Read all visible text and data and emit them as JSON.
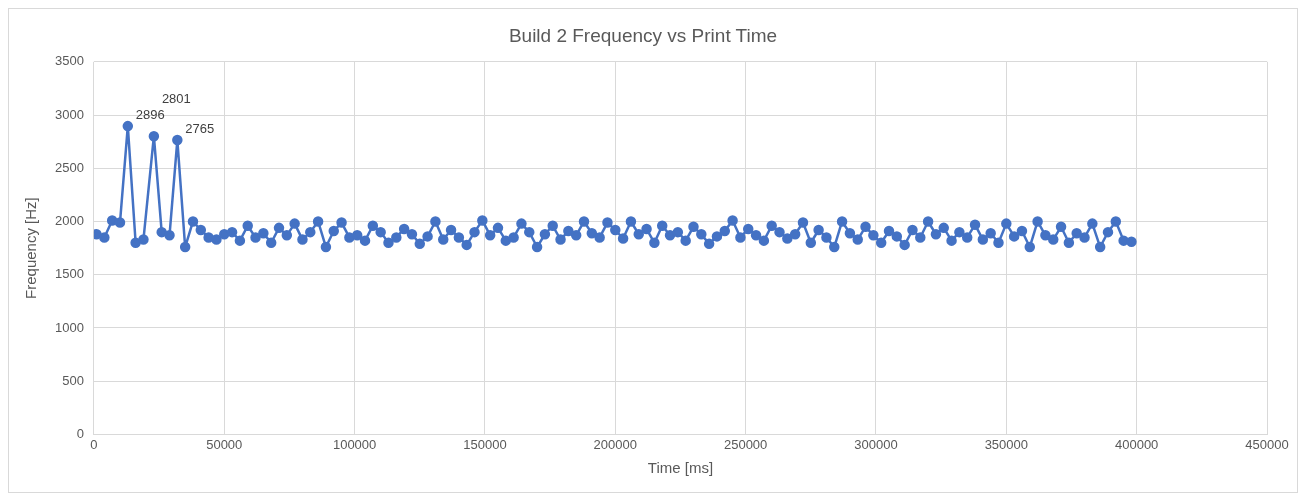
{
  "chart_data": {
    "type": "line",
    "title": "Build 2 Frequency vs Print Time",
    "xlabel": "Time [ms]",
    "ylabel": "Frequency [Hz]",
    "xlim": [
      0,
      450000
    ],
    "xticks": [
      0,
      50000,
      100000,
      150000,
      200000,
      250000,
      300000,
      350000,
      400000,
      450000
    ],
    "ylim": [
      0,
      3500
    ],
    "yticks": [
      0,
      500,
      1000,
      1500,
      2000,
      2500,
      3000,
      3500
    ],
    "grid": true,
    "legend": false,
    "marker": "circle",
    "line_style": "solid",
    "series": [
      {
        "color": "#4472c4",
        "x": [
          1000,
          4000,
          7000,
          10000,
          13000,
          16000,
          19000,
          23000,
          26000,
          29000,
          32000,
          35000,
          38000,
          41000,
          44000,
          47000,
          50000,
          53000,
          56000,
          59000,
          62000,
          65000,
          68000,
          71000,
          74000,
          77000,
          80000,
          83000,
          86000,
          89000,
          92000,
          95000,
          98000,
          101000,
          104000,
          107000,
          110000,
          113000,
          116000,
          119000,
          122000,
          125000,
          128000,
          131000,
          134000,
          137000,
          140000,
          143000,
          146000,
          149000,
          152000,
          155000,
          158000,
          161000,
          164000,
          167000,
          170000,
          173000,
          176000,
          179000,
          182000,
          185000,
          188000,
          191000,
          194000,
          197000,
          200000,
          203000,
          206000,
          209000,
          212000,
          215000,
          218000,
          221000,
          224000,
          227000,
          230000,
          233000,
          236000,
          239000,
          242000,
          245000,
          248000,
          251000,
          254000,
          257000,
          260000,
          263000,
          266000,
          269000,
          272000,
          275000,
          278000,
          281000,
          284000,
          287000,
          290000,
          293000,
          296000,
          299000,
          302000,
          305000,
          308000,
          311000,
          314000,
          317000,
          320000,
          323000,
          326000,
          329000,
          332000,
          335000,
          338000,
          341000,
          344000,
          347000,
          350000,
          353000,
          356000,
          359000,
          362000,
          365000,
          368000,
          371000,
          374000,
          377000,
          380000,
          383000,
          386000,
          389000,
          392000,
          395000,
          398000
        ],
        "values": [
          1880,
          1850,
          2010,
          1990,
          2896,
          1800,
          1830,
          2801,
          1900,
          1870,
          2765,
          1760,
          2000,
          1920,
          1850,
          1830,
          1880,
          1900,
          1820,
          1960,
          1850,
          1890,
          1800,
          1940,
          1870,
          1980,
          1830,
          1900,
          2000,
          1760,
          1910,
          1990,
          1850,
          1870,
          1820,
          1960,
          1900,
          1800,
          1850,
          1930,
          1880,
          1790,
          1860,
          2000,
          1830,
          1920,
          1850,
          1780,
          1900,
          2010,
          1870,
          1940,
          1820,
          1850,
          1980,
          1900,
          1760,
          1880,
          1960,
          1830,
          1910,
          1870,
          2000,
          1890,
          1850,
          1990,
          1920,
          1840,
          2000,
          1880,
          1930,
          1800,
          1960,
          1870,
          1900,
          1820,
          1950,
          1880,
          1790,
          1860,
          1910,
          2010,
          1850,
          1930,
          1870,
          1820,
          1960,
          1900,
          1840,
          1880,
          1990,
          1800,
          1920,
          1850,
          1760,
          2000,
          1890,
          1830,
          1950,
          1870,
          1800,
          1910,
          1860,
          1780,
          1920,
          1850,
          2000,
          1880,
          1940,
          1820,
          1900,
          1850,
          1970,
          1830,
          1890,
          1800,
          1980,
          1860,
          1910,
          1760,
          2000,
          1870,
          1830,
          1950,
          1800,
          1890,
          1850,
          1980,
          1760,
          1900,
          2000,
          1820,
          1810
        ],
        "value_labels": [
          null,
          null,
          null,
          null,
          "2896",
          null,
          null,
          "2801",
          null,
          null,
          "2765",
          null,
          null,
          null,
          null,
          null,
          null,
          null,
          null,
          null,
          null,
          null,
          null,
          null,
          null,
          null,
          null,
          null,
          null,
          null,
          null,
          null,
          null,
          null,
          null,
          null,
          null,
          null,
          null,
          null,
          null,
          null,
          null,
          null,
          null,
          null,
          null,
          null,
          null,
          null,
          null,
          null,
          null,
          null,
          null,
          null,
          null,
          null,
          null,
          null,
          null,
          null,
          null,
          null,
          null,
          null,
          null,
          null,
          null,
          null,
          null,
          null,
          null,
          null,
          null,
          null,
          null,
          null,
          null,
          null,
          null,
          null,
          null,
          null,
          null,
          null,
          null,
          null,
          null,
          null,
          null,
          null,
          null,
          null,
          null,
          null,
          null,
          null,
          null,
          null,
          null,
          null,
          null,
          null,
          null,
          null,
          null,
          null,
          null,
          null,
          null,
          null,
          null,
          null,
          null,
          null,
          null,
          null,
          null,
          null,
          null,
          null,
          null,
          null,
          null,
          null,
          null,
          null,
          null,
          null,
          null,
          null,
          null
        ]
      }
    ]
  }
}
